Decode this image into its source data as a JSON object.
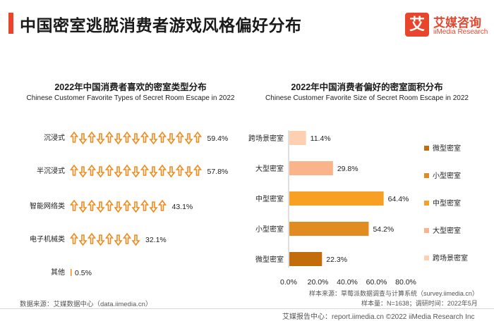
{
  "header": {
    "title": "中国密室逃脱消费者游戏风格偏好分布"
  },
  "logo": {
    "mark": "艾",
    "name_cn": "艾媒咨询",
    "name_en": "iiMedia Research"
  },
  "chart_data": [
    {
      "type": "bar",
      "title": "2022年中国消费者喜欢的密室类型分布",
      "subtitle": "Chinese Customer Favorite Types of Secret Room Escape in 2022",
      "categories": [
        "沉浸式",
        "半沉浸式",
        "智能网络类",
        "电子机械类",
        "其他"
      ],
      "values": [
        59.4,
        57.8,
        43.1,
        32.1,
        0.5
      ],
      "value_labels": [
        "59.4%",
        "57.8%",
        "43.1%",
        "32.1%",
        "0.5%"
      ],
      "orientation": "horizontal",
      "style": "pictorial-arrows",
      "color": "#f08a1c",
      "xlim": [
        0,
        60
      ]
    },
    {
      "type": "bar",
      "title": "2022年中国消费者偏好的密室面积分布",
      "subtitle": "Chinese Customer Favorite Size of Secret Room Escape in 2022",
      "categories": [
        "跨场景密室",
        "大型密室",
        "中型密室",
        "小型密室",
        "微型密室"
      ],
      "values": [
        11.4,
        29.8,
        64.4,
        54.2,
        22.3
      ],
      "value_labels": [
        "11.4%",
        "29.8%",
        "64.4%",
        "54.2%",
        "22.3%"
      ],
      "colors": [
        "#fcd0b0",
        "#f9b48a",
        "#f7a024",
        "#e08c20",
        "#c26c0c"
      ],
      "orientation": "horizontal",
      "xlim": [
        0,
        80
      ],
      "xticks": [
        "0.0%",
        "20.0%",
        "40.0%",
        "60.0%",
        "80.0%"
      ],
      "legend": [
        "微型密室",
        "小型密室",
        "中型密室",
        "大型密室",
        "跨场景密室"
      ],
      "legend_colors": [
        "#c26c0c",
        "#e08c20",
        "#f7a024",
        "#f9b48a",
        "#fcd0b0"
      ],
      "legend_position": "right"
    }
  ],
  "notes": {
    "sample_source": "样本来源：草莓派数据调查与计算系统（survey.iimedia.cn）",
    "sample_info": "样本量：N=1638；调研时间：2022年5月",
    "data_source": "数据来源：艾媒数据中心（data.iimedia.cn）",
    "copyright": "艾媒报告中心：report.iimedia.cn ©2022  iiMedia Research  Inc"
  }
}
